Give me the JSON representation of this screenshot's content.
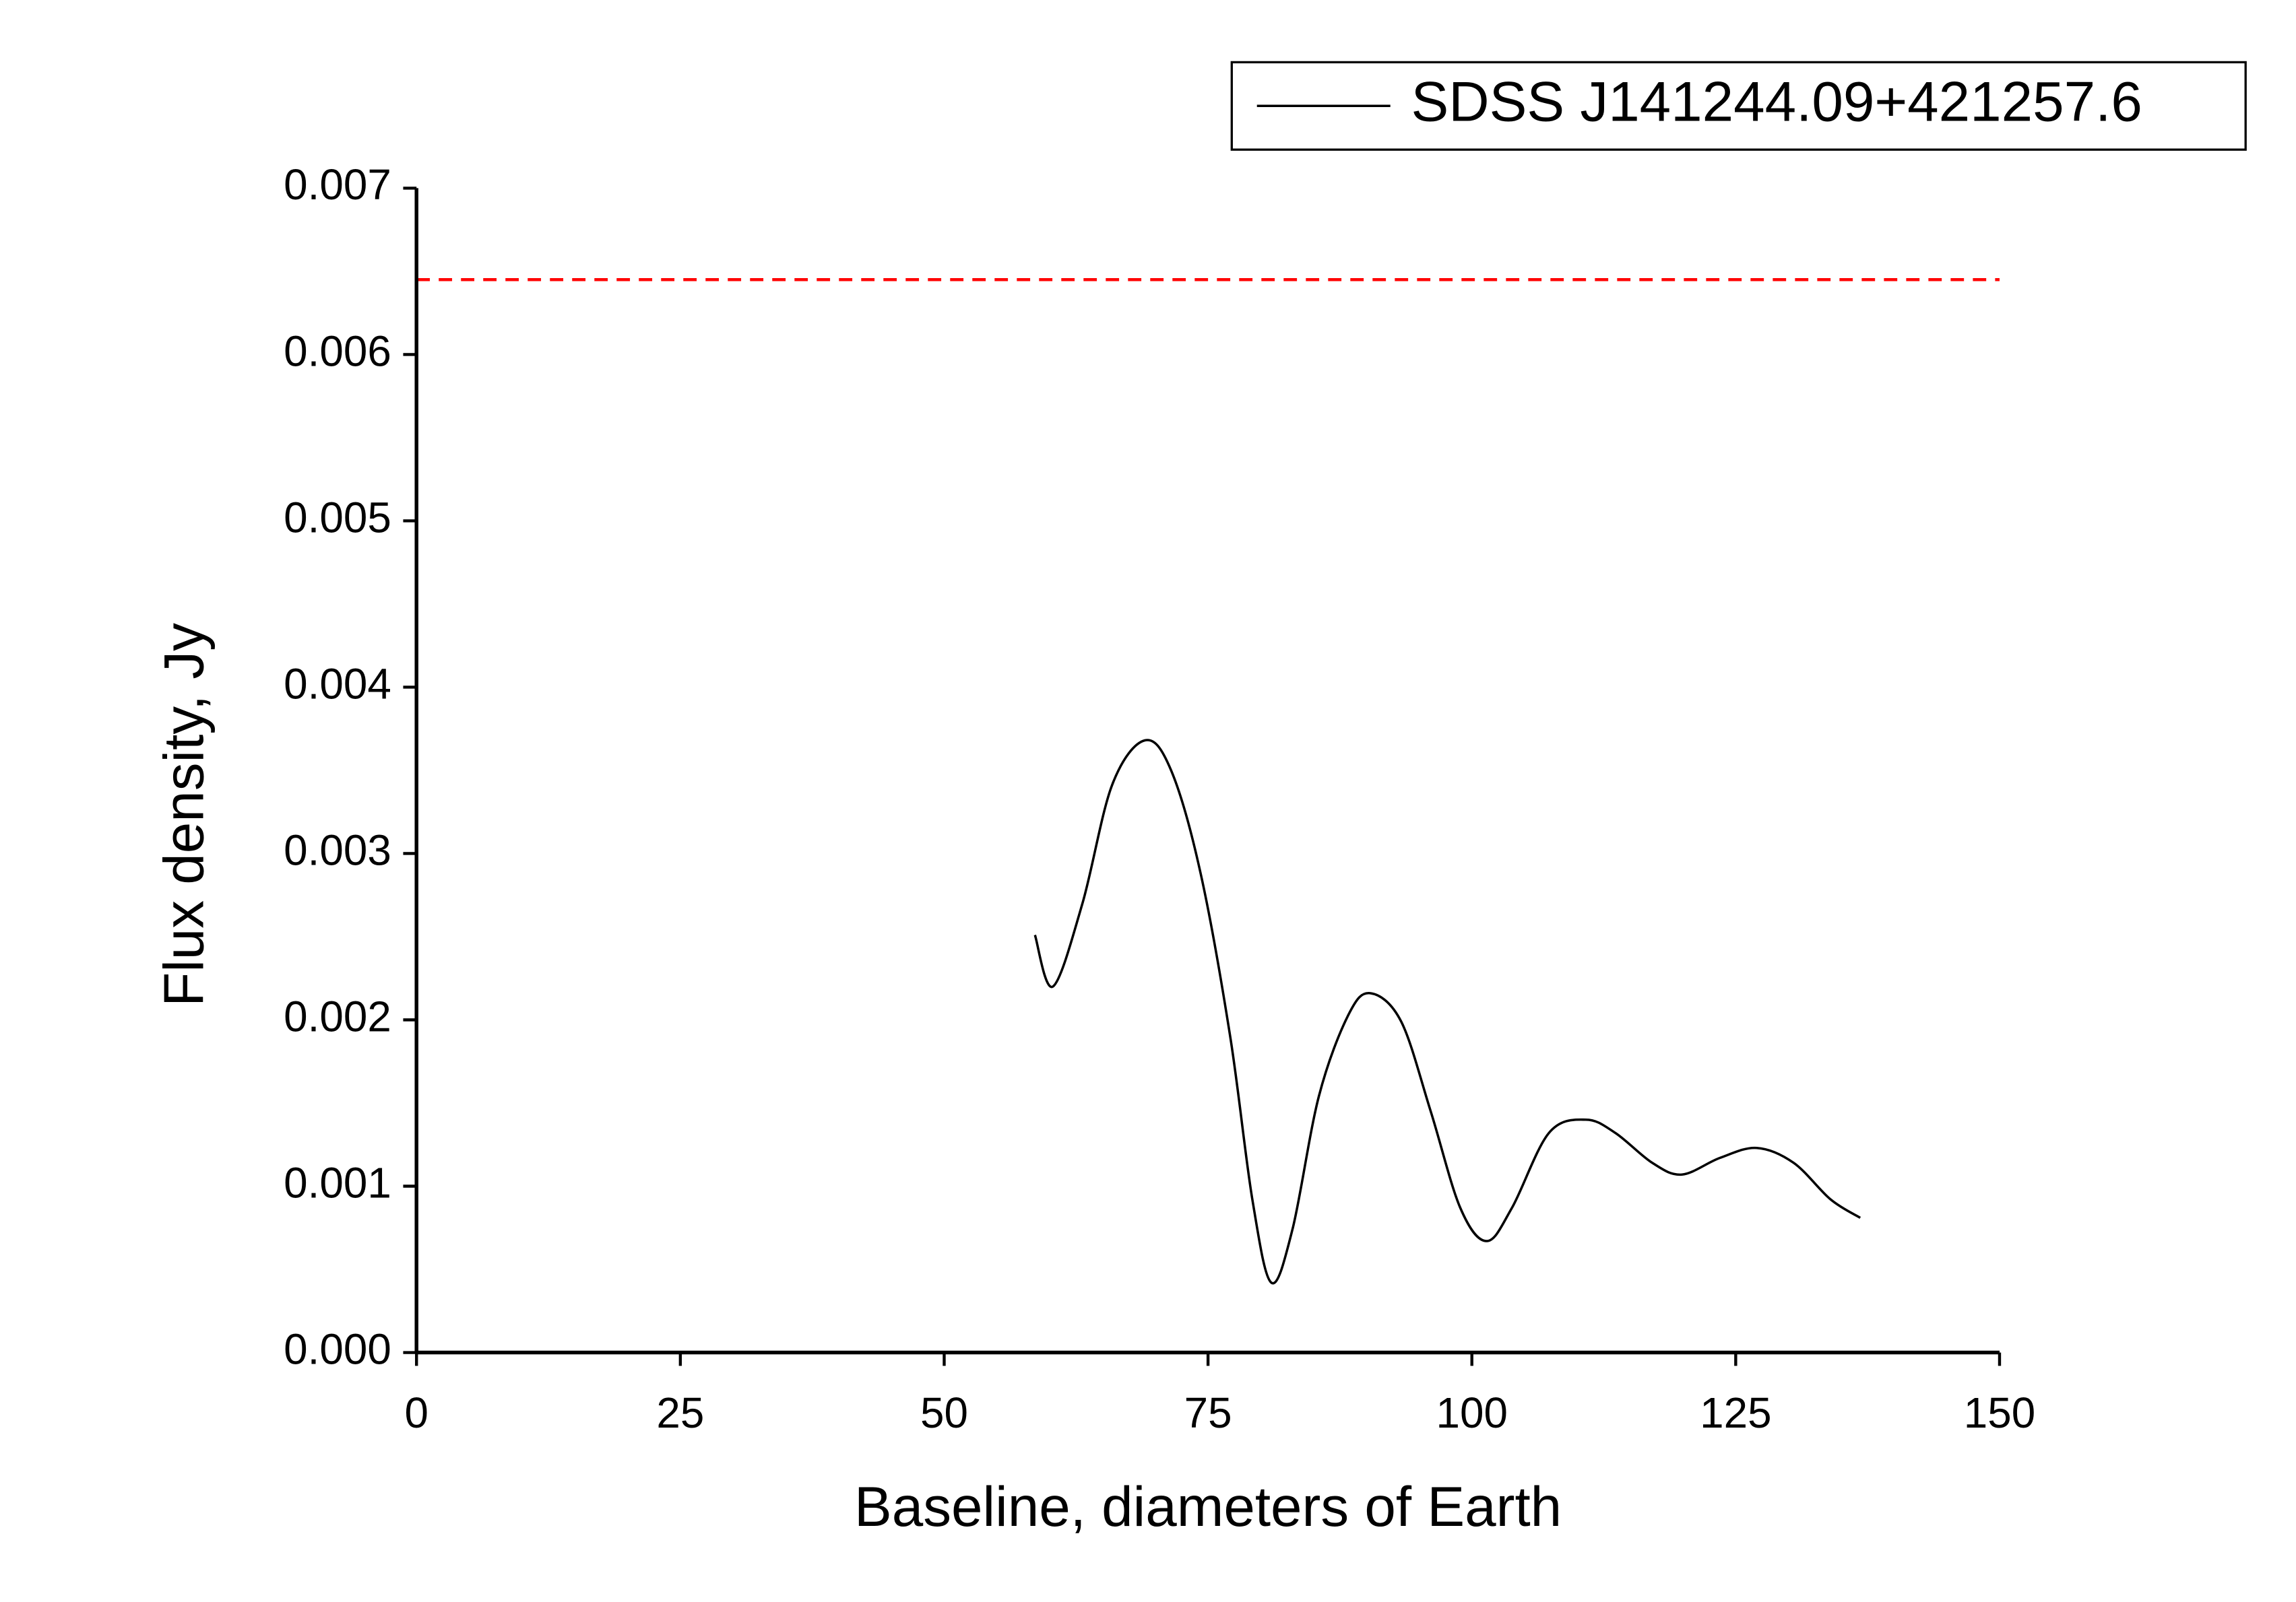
{
  "chart_data": {
    "type": "line",
    "x_label": "Baseline, diameters of Earth",
    "y_label": "Flux density, Jy",
    "xlim": [
      0,
      150
    ],
    "xticks": [
      0,
      25,
      50,
      75,
      100,
      125,
      150
    ],
    "ylim": [
      0,
      0.007
    ],
    "yticks": [
      {
        "value": 0,
        "label": "0.000"
      },
      0.001,
      0.002,
      0.003,
      0.004,
      0.005,
      0.006,
      0.007
    ],
    "series": [
      {
        "name": "SDSS J141244.09+421257.6",
        "color": "#000000",
        "x": [
          58.6,
          60.3,
          63.1,
          65.9,
          69.0,
          71.5,
          74.3,
          77.1,
          79.2,
          81.0,
          83.0,
          85.5,
          88.3,
          90.4,
          93.3,
          96.1,
          98.9,
          101.4,
          103.8,
          107.3,
          110.8,
          113.6,
          117.1,
          119.9,
          123.5,
          127.0,
          130.5,
          134.0,
          136.8
        ],
        "values": [
          0.00251,
          0.0022,
          0.0027,
          0.00341,
          0.00368,
          0.0035,
          0.00288,
          0.0019,
          0.00092,
          0.00042,
          0.00074,
          0.00154,
          0.00203,
          0.00216,
          0.00199,
          0.00145,
          0.00087,
          0.00067,
          0.00087,
          0.00132,
          0.0014,
          0.00132,
          0.00114,
          0.00107,
          0.00117,
          0.00123,
          0.00114,
          0.00092,
          0.00081
        ]
      }
    ],
    "reference_line": {
      "value": 0.00645,
      "color": "#ff0000"
    },
    "legend_position": "upper right"
  }
}
